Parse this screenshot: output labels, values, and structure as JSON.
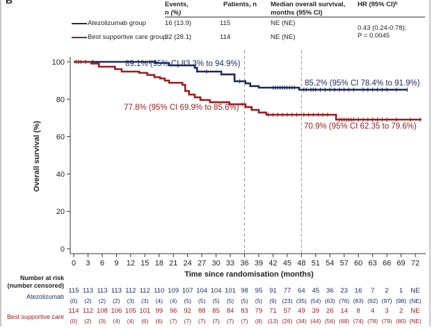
{
  "panel_label": "B",
  "table": {
    "headers": {
      "events": [
        "Events,",
        "n (%)"
      ],
      "patients": "Patients, n",
      "median": [
        "Median overall survival,",
        "months (95% CI)"
      ],
      "hr": "HR (95% CI)ᵇ"
    },
    "rows": [
      {
        "group": "Atezolizumab group",
        "color": "#1b2a5e",
        "events": "16 (13.9)",
        "patients": "115",
        "median": "NE (NE)"
      },
      {
        "group": "Best supportive care group",
        "color": "#9a1c1f",
        "events": "32 (28.1)",
        "patients": "114",
        "median": "NE (NE)"
      }
    ],
    "hr_line1": "0.43 (0.24-0.78);",
    "hr_line2": "P = 0.0045"
  },
  "chart_data": {
    "type": "line",
    "subtype": "kaplan-meier",
    "title": "",
    "xlabel": "Time since randomisation (months)",
    "ylabel": "Overall survival (%)",
    "xlim": [
      0,
      72
    ],
    "ylim": [
      0,
      100
    ],
    "xticks": [
      0,
      3,
      6,
      9,
      12,
      15,
      18,
      21,
      24,
      27,
      30,
      33,
      36,
      39,
      42,
      45,
      48,
      51,
      54,
      57,
      60,
      63,
      66,
      69,
      72
    ],
    "yticks": [
      0,
      20,
      40,
      60,
      80,
      100
    ],
    "reference_lines_x": [
      36,
      48
    ],
    "grid": false,
    "series": [
      {
        "name": "Atezolizumab group",
        "color": "#1b2a5e",
        "steps": [
          [
            0,
            100
          ],
          [
            17.2,
            99.4
          ],
          [
            20.1,
            98.1
          ],
          [
            25.5,
            96.8
          ],
          [
            26,
            94.8
          ],
          [
            31.1,
            93.3
          ],
          [
            33.9,
            89.6
          ],
          [
            36.2,
            88.5
          ],
          [
            37.2,
            87.0
          ],
          [
            39,
            86.2
          ],
          [
            47.5,
            85.1
          ],
          [
            70.3,
            85.1
          ]
        ],
        "censor_times": [
          1,
          2.5,
          4,
          16,
          22,
          28,
          35,
          42,
          42.5,
          43,
          43.5,
          44,
          44.5,
          45,
          45.5,
          46,
          46.5,
          48.5,
          49,
          50,
          50.5,
          51,
          52,
          53,
          54,
          55,
          56,
          57,
          58,
          59,
          61,
          62,
          63,
          64,
          65,
          66,
          68,
          70.3
        ]
      },
      {
        "name": "Best supportive care group",
        "color": "#9a1c1f",
        "steps": [
          [
            0,
            100
          ],
          [
            3.7,
            99.1
          ],
          [
            5.3,
            97.4
          ],
          [
            8.7,
            96.1
          ],
          [
            10.1,
            94.8
          ],
          [
            13.8,
            94.1
          ],
          [
            15.5,
            93.0
          ],
          [
            17,
            91.8
          ],
          [
            18.2,
            91.1
          ],
          [
            19.2,
            90.0
          ],
          [
            20.1,
            88.8
          ],
          [
            22.9,
            87.7
          ],
          [
            23.5,
            84.4
          ],
          [
            24.3,
            82.5
          ],
          [
            25.5,
            81.0
          ],
          [
            26.7,
            79.6
          ],
          [
            28.7,
            78.4
          ],
          [
            32.8,
            77.3
          ],
          [
            36.2,
            75.8
          ],
          [
            37.5,
            74.3
          ],
          [
            39,
            72.9
          ],
          [
            40.6,
            71.7
          ],
          [
            48.3,
            71.7
          ],
          [
            55.3,
            69.1
          ],
          [
            73.3,
            69.1
          ]
        ],
        "censor_times": [
          0.5,
          1.5,
          2.5,
          35.5,
          41,
          42,
          43,
          44,
          45,
          46,
          47,
          48.5,
          49.5,
          50.5,
          51.5,
          52.5,
          53.5,
          56,
          56.5,
          57,
          57.5,
          58,
          58.5,
          59,
          60,
          61,
          62,
          63,
          64,
          65,
          66,
          68,
          71,
          73
        ]
      }
    ],
    "annotations": [
      {
        "text": "89.1% (95% CI 83.3% to 94.9%)",
        "series": "Atezolizumab group"
      },
      {
        "text": "77.8% (95% CI 69.9% to 85.6%)",
        "series": "Best supportive care group"
      },
      {
        "text": "85.2% (95% CI 78.4% to 91.9%)",
        "series": "Atezolizumab group"
      },
      {
        "text": "70.9% (95% CI 62.35 to 79.6%)",
        "series": "Best supportive care group"
      }
    ]
  },
  "risk_table": {
    "title_line1": "Number at risk",
    "title_line2": "(number censored)",
    "rows": [
      {
        "label": "Atezolizumab",
        "color": "#1b2a5e",
        "at_risk": [
          "115",
          "113",
          "113",
          "113",
          "112",
          "112",
          "110",
          "109",
          "107",
          "104",
          "104",
          "101",
          "98",
          "95",
          "91",
          "77",
          "64",
          "45",
          "36",
          "23",
          "16",
          "7",
          "2",
          "1",
          "NE"
        ],
        "censored": [
          "(0)",
          "(2)",
          "(2)",
          "(2)",
          "(3)",
          "(3)",
          "(4)",
          "(4)",
          "(5)",
          "(5)",
          "(5)",
          "(5)",
          "(5)",
          "(5)",
          "(9)",
          "(23)",
          "(35)",
          "(54)",
          "(63)",
          "(76)",
          "(83)",
          "(92)",
          "(97)",
          "(98)",
          "(NE)"
        ]
      },
      {
        "label": "Best supportive care",
        "color": "#9a1c1f",
        "at_risk": [
          "114",
          "112",
          "108",
          "106",
          "105",
          "101",
          "99",
          "96",
          "92",
          "88",
          "85",
          "84",
          "83",
          "79",
          "71",
          "57",
          "49",
          "39",
          "26",
          "14",
          "8",
          "4",
          "3",
          "2",
          "NE"
        ],
        "censored": [
          "(0)",
          "(2)",
          "(3)",
          "(4)",
          "(4)",
          "(6)",
          "(6)",
          "(7)",
          "(7)",
          "(7)",
          "(7)",
          "(7)",
          "(7)",
          "(8)",
          "(13)",
          "(26)",
          "(34)",
          "(44)",
          "(56)",
          "(68)",
          "(74)",
          "(78)",
          "(79)",
          "(80)",
          "(NE)"
        ]
      }
    ]
  }
}
